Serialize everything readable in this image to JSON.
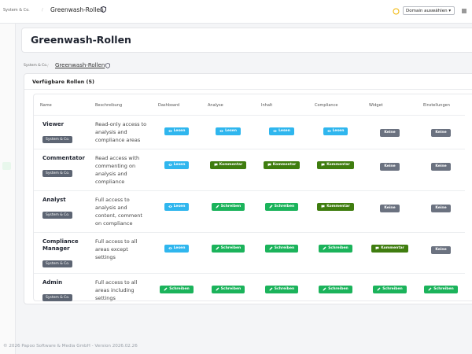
{
  "topbar": {
    "breadcrumb": [
      "System & Co.",
      "Greenwash-Rollen"
    ],
    "domain_select": "Domain auswählen"
  },
  "header": {
    "title": "Greenwash-Rollen"
  },
  "breadcrumb": [
    "System & Co.",
    "Greenwash-Rollen"
  ],
  "card": {
    "title": "Verfügbare Rollen (5)"
  },
  "table": {
    "columns": [
      "Name",
      "Beschreibung",
      "Dashboard",
      "Analyse",
      "Inhalt",
      "Compliance",
      "Widget",
      "Einstellungen"
    ],
    "rows": [
      {
        "name": "Viewer",
        "tenant": "System & Co.",
        "description": "Read-only access to analysis and compliance areas",
        "permissions": [
          {
            "label": "Lesen",
            "color": "#2fb6ee",
            "icon": "eye"
          },
          {
            "label": "Lesen",
            "color": "#2fb6ee",
            "icon": "eye"
          },
          {
            "label": "Lesen",
            "color": "#2fb6ee",
            "icon": "eye"
          },
          {
            "label": "Lesen",
            "color": "#2fb6ee",
            "icon": "eye"
          },
          {
            "label": "Keine",
            "color": "#6b7280",
            "icon": null
          },
          {
            "label": "Keine",
            "color": "#6b7280",
            "icon": null
          }
        ]
      },
      {
        "name": "Commentator",
        "tenant": "System & Co.",
        "description": "Read access with commenting on analysis and compliance",
        "permissions": [
          {
            "label": "Lesen",
            "color": "#2fb6ee",
            "icon": "eye"
          },
          {
            "label": "Kommentar",
            "color": "#3f7d0f",
            "icon": "comment"
          },
          {
            "label": "Kommentar",
            "color": "#3f7d0f",
            "icon": "comment"
          },
          {
            "label": "Kommentar",
            "color": "#3f7d0f",
            "icon": "comment"
          },
          {
            "label": "Keine",
            "color": "#6b7280",
            "icon": null
          },
          {
            "label": "Keine",
            "color": "#6b7280",
            "icon": null
          }
        ]
      },
      {
        "name": "Analyst",
        "tenant": "System & Co.",
        "description": "Full access to analysis and content, comment on compliance",
        "permissions": [
          {
            "label": "Lesen",
            "color": "#2fb6ee",
            "icon": "eye"
          },
          {
            "label": "Schreiben",
            "color": "#1bb35b",
            "icon": "pencil"
          },
          {
            "label": "Schreiben",
            "color": "#1bb35b",
            "icon": "pencil"
          },
          {
            "label": "Kommentar",
            "color": "#3f7d0f",
            "icon": "comment"
          },
          {
            "label": "Keine",
            "color": "#6b7280",
            "icon": null
          },
          {
            "label": "Keine",
            "color": "#6b7280",
            "icon": null
          }
        ]
      },
      {
        "name": "Compliance Manager",
        "tenant": "System & Co.",
        "description": "Full access to all areas except settings",
        "permissions": [
          {
            "label": "Lesen",
            "color": "#2fb6ee",
            "icon": "eye"
          },
          {
            "label": "Schreiben",
            "color": "#1bb35b",
            "icon": "pencil"
          },
          {
            "label": "Schreiben",
            "color": "#1bb35b",
            "icon": "pencil"
          },
          {
            "label": "Schreiben",
            "color": "#1bb35b",
            "icon": "pencil"
          },
          {
            "label": "Kommentar",
            "color": "#3f7d0f",
            "icon": "comment"
          },
          {
            "label": "Keine",
            "color": "#6b7280",
            "icon": null
          }
        ]
      },
      {
        "name": "Admin",
        "tenant": "System & Co.",
        "description": "Full access to all areas including settings",
        "permissions": [
          {
            "label": "Schreiben",
            "color": "#1bb35b",
            "icon": "pencil"
          },
          {
            "label": "Schreiben",
            "color": "#1bb35b",
            "icon": "pencil"
          },
          {
            "label": "Schreiben",
            "color": "#1bb35b",
            "icon": "pencil"
          },
          {
            "label": "Schreiben",
            "color": "#1bb35b",
            "icon": "pencil"
          },
          {
            "label": "Schreiben",
            "color": "#1bb35b",
            "icon": "pencil"
          },
          {
            "label": "Schreiben",
            "color": "#1bb35b",
            "icon": "pencil"
          }
        ]
      }
    ]
  },
  "footer": "© 2026 Papoo Software & Media GmbH - Version 2026.02.26"
}
